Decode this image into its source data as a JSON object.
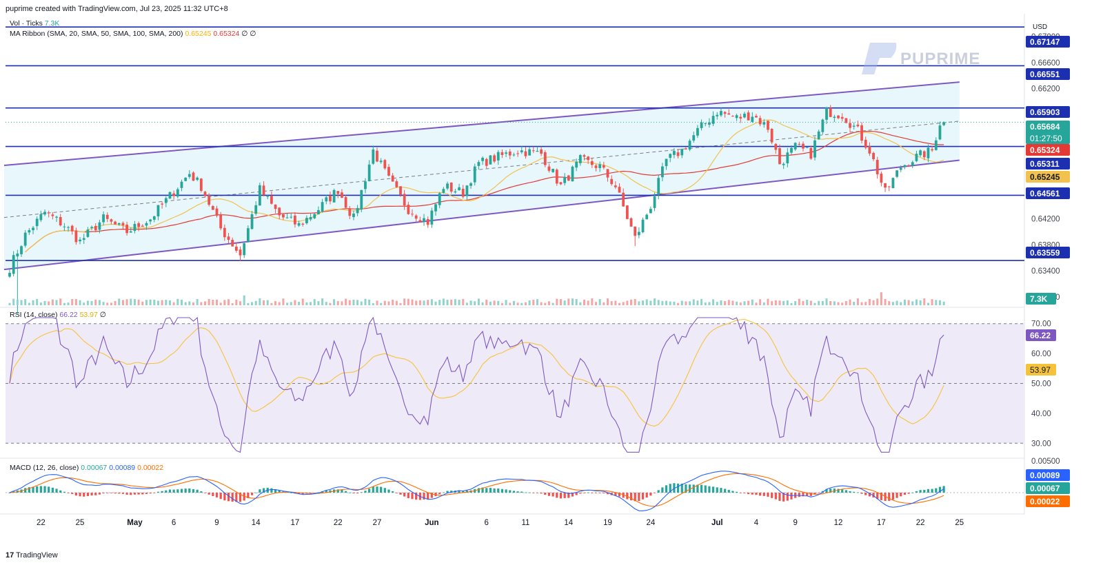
{
  "header": {
    "created_by": "puprime created with TradingView.com, Jul 23, 2025 11:32 UTC+8"
  },
  "brand": {
    "logo_text": "PUPRIME",
    "footer_logo": "TradingView",
    "footer_mark": "17"
  },
  "legends": {
    "volume": {
      "label": "Vol · Ticks",
      "value": "7.3K"
    },
    "ma_ribbon": {
      "label": "MA Ribbon (SMA, 20, SMA, 50, SMA, 100, SMA, 200)",
      "v1": "0.65245",
      "v2": "0.65324",
      "tail": "∅ ∅"
    },
    "rsi": {
      "label": "RSI (14, close)",
      "v1": "66.22",
      "v2": "53.97",
      "tail": "∅"
    },
    "macd": {
      "label": "MACD (12, 26, close)",
      "v1": "0.00067",
      "v2": "0.00089",
      "v3": "0.00022"
    }
  },
  "colors": {
    "up": "#26a69a",
    "down": "#ef5350",
    "hline": "#1c2fb0",
    "channel": "#7e57c2",
    "channel_fill": "#e0f4fa",
    "rsi_fill": "#efeaf8",
    "ma_short": "#f2c14e",
    "ma_long": "#e53935",
    "macd_line": "#2962ff",
    "signal_line": "#ff6d00",
    "rsi_line": "#7e57c2",
    "rsi_ma": "#f5c33b"
  },
  "chart_data": {
    "type": "candlestick",
    "currency": "USD",
    "ylim": [
      0.6285,
      0.6735
    ],
    "price_ticks": [
      "0.67000",
      "0.66600",
      "0.66200",
      "0.65800",
      "0.65400",
      "0.65000",
      "0.64600",
      "0.64200",
      "0.63800",
      "0.63400",
      "0.63000"
    ],
    "horizontal_levels": [
      "0.67147",
      "0.66551",
      "0.65903",
      "0.65311",
      "0.64561",
      "0.63559"
    ],
    "price_labels": [
      {
        "value": "0.67147",
        "color": "#1c2fb0"
      },
      {
        "value": "0.66551",
        "color": "#1c2fb0"
      },
      {
        "value": "0.65903",
        "color": "#1c2fb0"
      },
      {
        "value": "0.65684",
        "color": "#26a69a",
        "sub": "01:27:50"
      },
      {
        "value": "0.65324",
        "color": "#e53935"
      },
      {
        "value": "0.65311",
        "color": "#1c2fb0"
      },
      {
        "value": "0.65245",
        "color": "#f2c14e",
        "text_color": "#131722"
      },
      {
        "value": "0.64561",
        "color": "#1c2fb0"
      }
    ],
    "low_label": {
      "value": "0.63559",
      "color": "#1c2fb0"
    },
    "last_price": "0.65684",
    "countdown": "01:27:50",
    "channel": {
      "lower": [
        [
          0,
          0.6342
        ],
        [
          243,
          0.651
        ]
      ],
      "upper": [
        [
          0,
          0.6502
        ],
        [
          243,
          0.663
        ]
      ]
    },
    "x_labels": [
      {
        "i": 8,
        "t": "22"
      },
      {
        "i": 18,
        "t": "25"
      },
      {
        "i": 32,
        "t": "May",
        "bold": true
      },
      {
        "i": 42,
        "t": "6"
      },
      {
        "i": 53,
        "t": "9"
      },
      {
        "i": 63,
        "t": "14"
      },
      {
        "i": 73,
        "t": "17"
      },
      {
        "i": 84,
        "t": "22"
      },
      {
        "i": 94,
        "t": "27"
      },
      {
        "i": 108,
        "t": "Jun",
        "bold": true
      },
      {
        "i": 122,
        "t": "6"
      },
      {
        "i": 132,
        "t": "11"
      },
      {
        "i": 143,
        "t": "14"
      },
      {
        "i": 153,
        "t": "19"
      },
      {
        "i": 164,
        "t": "24"
      },
      {
        "i": 181,
        "t": "Jul",
        "bold": true
      },
      {
        "i": 191,
        "t": "4"
      },
      {
        "i": 201,
        "t": "9"
      },
      {
        "i": 212,
        "t": "12"
      },
      {
        "i": 223,
        "t": "17"
      },
      {
        "i": 233,
        "t": "22"
      },
      {
        "i": 243,
        "t": "25"
      }
    ],
    "anchors": [
      [
        0,
        0.6345
      ],
      [
        4,
        0.6395
      ],
      [
        9,
        0.643
      ],
      [
        14,
        0.641
      ],
      [
        18,
        0.6385
      ],
      [
        24,
        0.642
      ],
      [
        30,
        0.64
      ],
      [
        36,
        0.642
      ],
      [
        41,
        0.6455
      ],
      [
        46,
        0.649
      ],
      [
        49,
        0.647
      ],
      [
        54,
        0.6405
      ],
      [
        59,
        0.6365
      ],
      [
        64,
        0.6465
      ],
      [
        69,
        0.6425
      ],
      [
        74,
        0.641
      ],
      [
        79,
        0.6435
      ],
      [
        84,
        0.6465
      ],
      [
        88,
        0.642
      ],
      [
        93,
        0.6525
      ],
      [
        97,
        0.648
      ],
      [
        102,
        0.6435
      ],
      [
        107,
        0.6415
      ],
      [
        111,
        0.647
      ],
      [
        116,
        0.646
      ],
      [
        120,
        0.6505
      ],
      [
        125,
        0.6515
      ],
      [
        130,
        0.6525
      ],
      [
        136,
        0.652
      ],
      [
        141,
        0.647
      ],
      [
        146,
        0.651
      ],
      [
        151,
        0.65
      ],
      [
        155,
        0.647
      ],
      [
        160,
        0.639
      ],
      [
        164,
        0.644
      ],
      [
        168,
        0.651
      ],
      [
        172,
        0.6525
      ],
      [
        176,
        0.6555
      ],
      [
        181,
        0.6585
      ],
      [
        186,
        0.6575
      ],
      [
        190,
        0.658
      ],
      [
        194,
        0.656
      ],
      [
        197,
        0.6505
      ],
      [
        201,
        0.653
      ],
      [
        205,
        0.652
      ],
      [
        209,
        0.6585
      ],
      [
        213,
        0.658
      ],
      [
        217,
        0.6555
      ],
      [
        220,
        0.6525
      ],
      [
        224,
        0.646
      ],
      [
        228,
        0.65
      ],
      [
        232,
        0.6515
      ],
      [
        236,
        0.6525
      ],
      [
        238,
        0.6568
      ]
    ],
    "rsi": {
      "ylim": [
        25,
        75
      ],
      "ticks": [
        "70.00",
        "60.00",
        "50.00",
        "40.00",
        "30.00"
      ],
      "overbought": 70,
      "oversold": 30,
      "value": "66.22",
      "ma_value": "53.97"
    },
    "macd": {
      "ticks": [
        "0.00500"
      ],
      "macd_value": "0.00089",
      "signal_value": "0.00067",
      "hist_value": "0.00022"
    },
    "volume_value": "7.3K"
  }
}
